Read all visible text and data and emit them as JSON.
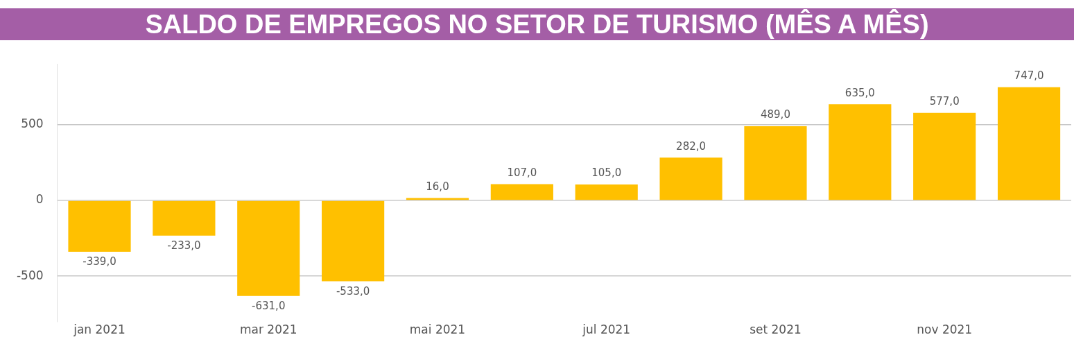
{
  "chart_data": {
    "type": "bar",
    "title": "SALDO DE EMPREGOS NO SETOR DE TURISMO (MÊS A MÊS)",
    "categories": [
      "jan 2021",
      null,
      "mar 2021",
      null,
      "mai 2021",
      null,
      "jul 2021",
      null,
      "set 2021",
      null,
      "nov 2021",
      null
    ],
    "values": [
      -339,
      -233,
      -631,
      -533,
      16,
      107,
      105,
      282,
      489,
      635,
      577,
      747
    ],
    "value_labels": [
      "-339,0",
      "-233,0",
      "-631,0",
      "-533,0",
      "16,0",
      "107,0",
      "105,0",
      "282,0",
      "489,0",
      "635,0",
      "577,0",
      "747,0"
    ],
    "color": "#ffc000",
    "ylim": [
      -800,
      900
    ],
    "yticks": [
      -500,
      0,
      500
    ],
    "grid": "y"
  }
}
